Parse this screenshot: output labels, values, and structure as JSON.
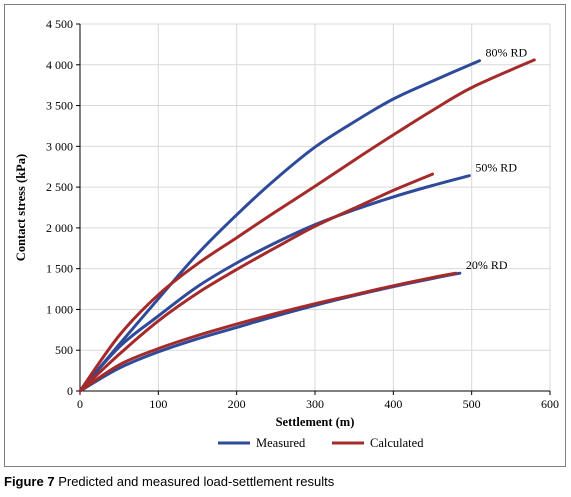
{
  "caption": {
    "prefix": "Figure 7",
    "text": " Predicted and measured load-settlement results"
  },
  "chart_data": {
    "type": "line",
    "xlabel": "Settlement (m)",
    "ylabel": "Contact stress (kPa)",
    "xlim": [
      0,
      600
    ],
    "ylim": [
      0,
      4500
    ],
    "xticks": [
      0,
      100,
      200,
      300,
      400,
      500,
      600
    ],
    "yticks": [
      0,
      500,
      1000,
      1500,
      2000,
      2500,
      3000,
      3500,
      4000,
      4500
    ],
    "xtick_labels": [
      "0",
      "100",
      "200",
      "300",
      "400",
      "500",
      "600"
    ],
    "ytick_labels": [
      "0",
      "500",
      "1 000",
      "1 500",
      "2 000",
      "2 500",
      "3 000",
      "3 500",
      "4 000",
      "4 500"
    ],
    "grid": true,
    "legend_position": "bottom",
    "legend": [
      "Measured",
      "Calculated"
    ],
    "colors": {
      "Measured": "#2e4a9a",
      "Calculated": "#a52a2a"
    },
    "annotations": [
      "80% RD",
      "50% RD",
      "20% RD"
    ],
    "series": [
      {
        "name": "Measured",
        "group": "80% RD",
        "x": [
          0,
          50,
          100,
          150,
          200,
          250,
          300,
          350,
          400,
          450,
          510
        ],
        "y": [
          0,
          570,
          1130,
          1680,
          2160,
          2600,
          2990,
          3300,
          3580,
          3800,
          4050
        ]
      },
      {
        "name": "Calculated",
        "group": "80% RD",
        "x": [
          0,
          50,
          100,
          150,
          200,
          250,
          300,
          350,
          400,
          450,
          500,
          580
        ],
        "y": [
          0,
          680,
          1180,
          1560,
          1880,
          2200,
          2510,
          2830,
          3140,
          3440,
          3720,
          4060
        ]
      },
      {
        "name": "Measured",
        "group": "50% RD",
        "x": [
          0,
          50,
          100,
          150,
          200,
          250,
          300,
          350,
          400,
          450,
          497
        ],
        "y": [
          0,
          540,
          920,
          1280,
          1570,
          1820,
          2040,
          2220,
          2380,
          2520,
          2640
        ]
      },
      {
        "name": "Calculated",
        "group": "50% RD",
        "x": [
          0,
          50,
          100,
          150,
          200,
          250,
          300,
          350,
          400,
          450
        ],
        "y": [
          0,
          450,
          860,
          1200,
          1490,
          1760,
          2020,
          2240,
          2460,
          2660
        ]
      },
      {
        "name": "Measured",
        "group": "20% RD",
        "x": [
          0,
          50,
          100,
          150,
          200,
          250,
          300,
          350,
          400,
          450,
          485
        ],
        "y": [
          0,
          280,
          480,
          640,
          780,
          920,
          1050,
          1170,
          1280,
          1380,
          1445
        ]
      },
      {
        "name": "Calculated",
        "group": "20% RD",
        "x": [
          0,
          50,
          100,
          150,
          200,
          250,
          300,
          350,
          400,
          450,
          480
        ],
        "y": [
          0,
          320,
          520,
          680,
          820,
          950,
          1070,
          1180,
          1290,
          1390,
          1445
        ]
      }
    ]
  }
}
